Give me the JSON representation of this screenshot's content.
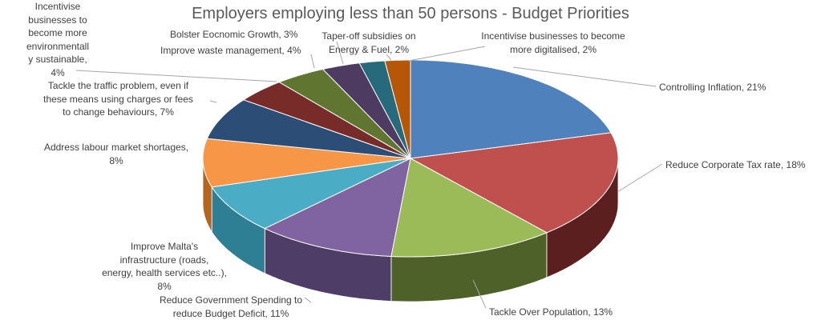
{
  "chart_data": {
    "type": "pie",
    "style": "3d",
    "title": "Employers employing less than 50 persons - Budget Priorities",
    "legend": "none",
    "slices": [
      {
        "label": "Controlling Inflation",
        "value": 21,
        "display": "Controlling Inflation, 21%",
        "color": "#4f81bd",
        "side": "#355a8a"
      },
      {
        "label": "Reduce Corporate Tax rate",
        "value": 18,
        "display": "Reduce Corporate Tax rate, 18%",
        "color": "#c0504d",
        "side": "#5a1f1e"
      },
      {
        "label": "Tackle Over Population",
        "value": 13,
        "display": "Tackle Over Population, 13%",
        "color": "#9bbb59",
        "side": "#4d6128"
      },
      {
        "label": "Reduce Government Spending to reduce Budget Deficit",
        "value": 11,
        "display_lines": [
          "Reduce Government Spending to",
          "reduce Budget Deficit, 11%"
        ],
        "color": "#8064a2",
        "side": "#4e3d66"
      },
      {
        "label": "Improve Malta's infrastructure (roads, energy, health services etc..)",
        "value": 8,
        "display_lines": [
          "Improve Malta's",
          "infrastructure (roads,",
          "energy, health services etc..),",
          "8%"
        ],
        "color": "#4bacc6",
        "side": "#2f7f94"
      },
      {
        "label": "Address labour market shortages",
        "value": 8,
        "display_lines": [
          "Address labour market shortages,",
          "8%"
        ],
        "color": "#f79646",
        "side": "#b5651f"
      },
      {
        "label": "Tackle the traffic problem, even if these means using charges or fees to change behaviours",
        "value": 7,
        "display_lines": [
          "Tackle the traffic problem, even if",
          "these means using charges or fees",
          "to change behaviours, 7%"
        ],
        "color": "#2c4d75",
        "side": "#1c3250"
      },
      {
        "label": "Incentivise businesses to become more environmentally sustainable",
        "value": 4,
        "display_lines": [
          "Incentivise",
          "businesses to",
          "become more",
          "environmentall",
          "y sustainable,",
          "4%"
        ],
        "color": "#772c2a",
        "side": "#4d1c1b"
      },
      {
        "label": "Improve waste management",
        "value": 4,
        "display": "Improve waste management, 4%",
        "color": "#5f7530",
        "side": "#3d4b1f"
      },
      {
        "label": "Bolster Eocnomic Growth",
        "value": 3,
        "display": "Bolster Eocnomic Growth, 3%",
        "color": "#4d3b62",
        "side": "#32263f"
      },
      {
        "label": "Taper-off subsidies on Energy & Fuel",
        "value": 2,
        "display_lines": [
          "Taper-off subsidies on",
          "Energy & Fuel, 2%"
        ],
        "color": "#276a7c",
        "side": "#194551"
      },
      {
        "label": "Incentivise businesses to become more digitalised",
        "value": 2,
        "display_lines": [
          "Incentivise businesses to become",
          "more digitalised, 2%"
        ],
        "color": "#b65708",
        "side": "#763805"
      }
    ]
  }
}
